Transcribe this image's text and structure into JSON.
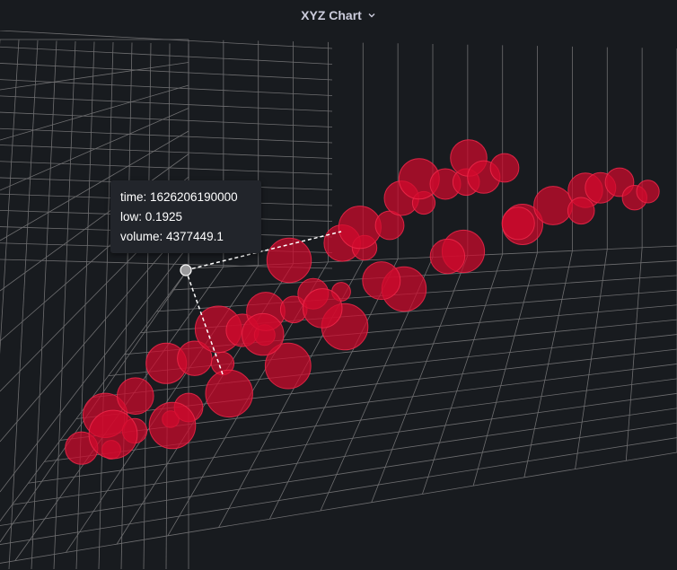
{
  "panel": {
    "title": "XYZ Chart"
  },
  "icons": {
    "title_menu": "chevron-down-icon"
  },
  "colors": {
    "background": "#181b1f",
    "grid": "#6e6e70",
    "point_fill": "#d10a2c",
    "point_stroke": "#f0284a",
    "title": "#ccccdc",
    "tooltip_bg": "#22252b",
    "tooltip_text": "#ffffff",
    "crosshair": "#ffffff"
  },
  "tooltip": {
    "time_label": "time: 1626206190000",
    "low_label": "low: 0.1925",
    "volume_label": "volume: 4377449.1"
  },
  "chart_data": {
    "type": "scatter",
    "dimensions": [
      "time",
      "low",
      "volume"
    ],
    "grid": true,
    "hovered": {
      "time": 1626206190000,
      "low": 0.1925,
      "volume": 4377449.1
    },
    "series": [
      {
        "values": [
          [
            0.02,
            0.08,
            0.55
          ],
          [
            0.05,
            0.15,
            0.2
          ],
          [
            0.08,
            0.12,
            0.85
          ],
          [
            0.1,
            0.18,
            0.35
          ],
          [
            0.12,
            0.22,
            0.65
          ],
          [
            0.15,
            0.26,
            0.15
          ],
          [
            0.18,
            0.3,
            0.75
          ],
          [
            0.2,
            0.24,
            0.45
          ],
          [
            0.22,
            0.35,
            0.6
          ],
          [
            0.25,
            0.4,
            0.3
          ],
          [
            0.28,
            0.38,
            0.9
          ],
          [
            0.3,
            0.45,
            0.55
          ],
          [
            0.32,
            0.5,
            0.25
          ],
          [
            0.35,
            0.48,
            0.7
          ],
          [
            0.38,
            0.55,
            0.4
          ],
          [
            0.4,
            0.6,
            0.85
          ],
          [
            0.42,
            0.58,
            0.5
          ],
          [
            0.45,
            0.65,
            0.2
          ],
          [
            0.48,
            0.7,
            0.65
          ],
          [
            0.5,
            0.75,
            0.35
          ],
          [
            0.52,
            0.72,
            0.8
          ],
          [
            0.55,
            0.8,
            0.45
          ],
          [
            0.58,
            0.85,
            0.6
          ],
          [
            0.6,
            0.9,
            0.3
          ],
          [
            0.62,
            0.88,
            0.75
          ],
          [
            0.65,
            0.92,
            0.5
          ],
          [
            0.68,
            0.95,
            0.4
          ],
          [
            0.7,
            0.97,
            0.65
          ],
          [
            0.72,
            0.94,
            0.55
          ],
          [
            0.75,
            0.99,
            0.45
          ],
          [
            0.1,
            0.05,
            0.95
          ],
          [
            0.2,
            0.1,
            0.9
          ],
          [
            0.3,
            0.2,
            0.92
          ],
          [
            0.4,
            0.3,
            0.88
          ],
          [
            0.5,
            0.42,
            0.9
          ],
          [
            0.6,
            0.55,
            0.85
          ],
          [
            0.7,
            0.68,
            0.8
          ],
          [
            0.8,
            0.78,
            0.75
          ],
          [
            0.85,
            0.85,
            0.7
          ],
          [
            0.9,
            0.92,
            0.6
          ],
          [
            0.92,
            0.95,
            0.5
          ],
          [
            0.95,
            0.98,
            0.45
          ],
          [
            0.97,
            0.96,
            0.35
          ],
          [
            0.99,
            0.99,
            0.3
          ],
          [
            0.88,
            0.9,
            0.4
          ],
          [
            0.78,
            0.82,
            0.55
          ],
          [
            0.66,
            0.7,
            0.6
          ],
          [
            0.55,
            0.6,
            0.68
          ],
          [
            0.45,
            0.5,
            0.72
          ],
          [
            0.35,
            0.4,
            0.78
          ]
        ]
      }
    ]
  }
}
